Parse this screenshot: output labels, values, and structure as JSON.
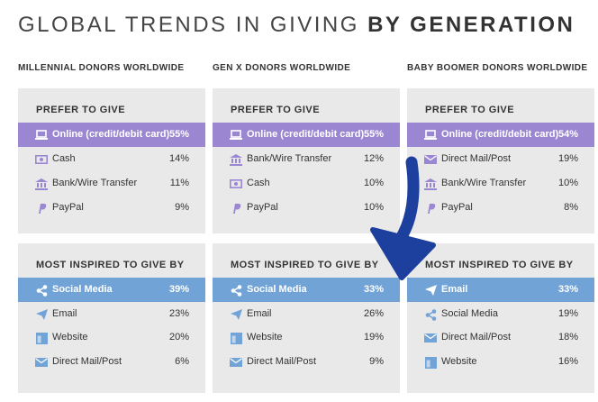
{
  "title": {
    "light": "GLOBAL TRENDS IN GIVING ",
    "bold": "BY GENERATION"
  },
  "colors": {
    "purple": "#9b86d2",
    "blue": "#72a3d6",
    "card_bg": "#e9e9ea",
    "arrow": "#1d3f9e"
  },
  "columns": [
    {
      "header": "MILLENNIAL DONORS WORLDWIDE",
      "prefer": {
        "title": "PREFER TO GIVE",
        "rows": [
          {
            "icon": "laptop-icon",
            "label": "Online (credit/debit card)",
            "value": "55%"
          },
          {
            "icon": "cash-icon",
            "label": "Cash",
            "value": "14%"
          },
          {
            "icon": "bank-icon",
            "label": "Bank/Wire Transfer",
            "value": "11%"
          },
          {
            "icon": "paypal-icon",
            "label": "PayPal",
            "value": "9%"
          }
        ]
      },
      "inspired": {
        "title": "MOST INSPIRED TO GIVE BY",
        "rows": [
          {
            "icon": "share-icon",
            "label": "Social Media",
            "value": "39%"
          },
          {
            "icon": "paper-plane-icon",
            "label": "Email",
            "value": "23%"
          },
          {
            "icon": "website-icon",
            "label": "Website",
            "value": "20%"
          },
          {
            "icon": "envelope-icon",
            "label": "Direct Mail/Post",
            "value": "6%"
          }
        ]
      }
    },
    {
      "header": "GEN X DONORS WORLDWIDE",
      "prefer": {
        "title": "PREFER TO GIVE",
        "rows": [
          {
            "icon": "laptop-icon",
            "label": "Online (credit/debit card)",
            "value": "55%"
          },
          {
            "icon": "bank-icon",
            "label": "Bank/Wire Transfer",
            "value": "12%"
          },
          {
            "icon": "cash-icon",
            "label": "Cash",
            "value": "10%"
          },
          {
            "icon": "paypal-icon",
            "label": "PayPal",
            "value": "10%"
          }
        ]
      },
      "inspired": {
        "title": "MOST INSPIRED TO GIVE BY",
        "rows": [
          {
            "icon": "share-icon",
            "label": "Social Media",
            "value": "33%"
          },
          {
            "icon": "paper-plane-icon",
            "label": "Email",
            "value": "26%"
          },
          {
            "icon": "website-icon",
            "label": "Website",
            "value": "19%"
          },
          {
            "icon": "envelope-icon",
            "label": "Direct Mail/Post",
            "value": "9%"
          }
        ]
      }
    },
    {
      "header": "BABY BOOMER DONORS WORLDWIDE",
      "prefer": {
        "title": "PREFER TO GIVE",
        "rows": [
          {
            "icon": "laptop-icon",
            "label": "Online (credit/debit card)",
            "value": "54%"
          },
          {
            "icon": "envelope-icon",
            "label": "Direct Mail/Post",
            "value": "19%"
          },
          {
            "icon": "bank-icon",
            "label": "Bank/Wire Transfer",
            "value": "10%"
          },
          {
            "icon": "paypal-icon",
            "label": "PayPal",
            "value": "8%"
          }
        ]
      },
      "inspired": {
        "title": "MOST INSPIRED TO GIVE BY",
        "rows": [
          {
            "icon": "paper-plane-icon",
            "label": "Email",
            "value": "33%"
          },
          {
            "icon": "share-icon",
            "label": "Social Media",
            "value": "19%"
          },
          {
            "icon": "envelope-icon",
            "label": "Direct Mail/Post",
            "value": "18%"
          },
          {
            "icon": "website-icon",
            "label": "Website",
            "value": "16%"
          }
        ]
      }
    }
  ]
}
